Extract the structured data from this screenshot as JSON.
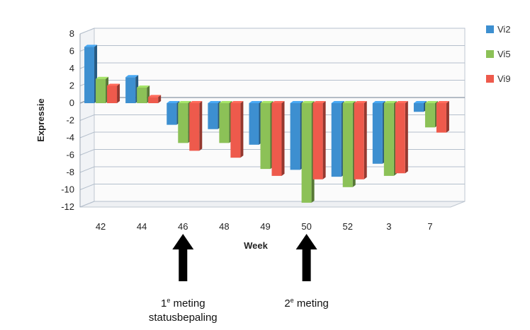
{
  "chart_data": {
    "type": "bar",
    "categories": [
      "42",
      "44",
      "46",
      "48",
      "49",
      "50",
      "52",
      "3",
      "7"
    ],
    "series": [
      {
        "name": "Vi2",
        "color": "#3d8fd0",
        "values": [
          6.5,
          3,
          -2.5,
          -3,
          -4.8,
          -7.7,
          -8.5,
          -7,
          -1
        ]
      },
      {
        "name": "Vi5",
        "color": "#8cc157",
        "values": [
          2.8,
          1.8,
          -4.6,
          -4.6,
          -7.6,
          -11.5,
          -9.7,
          -8.4,
          -2.8
        ]
      },
      {
        "name": "Vi9",
        "color": "#ee5a4c",
        "values": [
          2,
          0.7,
          -5.5,
          -6.3,
          -8.4,
          -8.8,
          -8.8,
          -8.1,
          -3.4
        ]
      }
    ],
    "xlabel": "Week",
    "ylabel": "Expressie",
    "ylim": [
      -12,
      8
    ],
    "yticks": [
      "8",
      "6",
      "4",
      "2",
      "0",
      "-2",
      "-4",
      "-6",
      "-8",
      "-10",
      "-12"
    ],
    "grid": true,
    "legend": "right",
    "annotations": [
      {
        "category": "46",
        "prefix": "1",
        "sup": "e",
        "text": " meting",
        "line2": "statusbepaling"
      },
      {
        "category": "50",
        "prefix": "2",
        "sup": "e",
        "text": " meting",
        "line2": ""
      }
    ]
  }
}
